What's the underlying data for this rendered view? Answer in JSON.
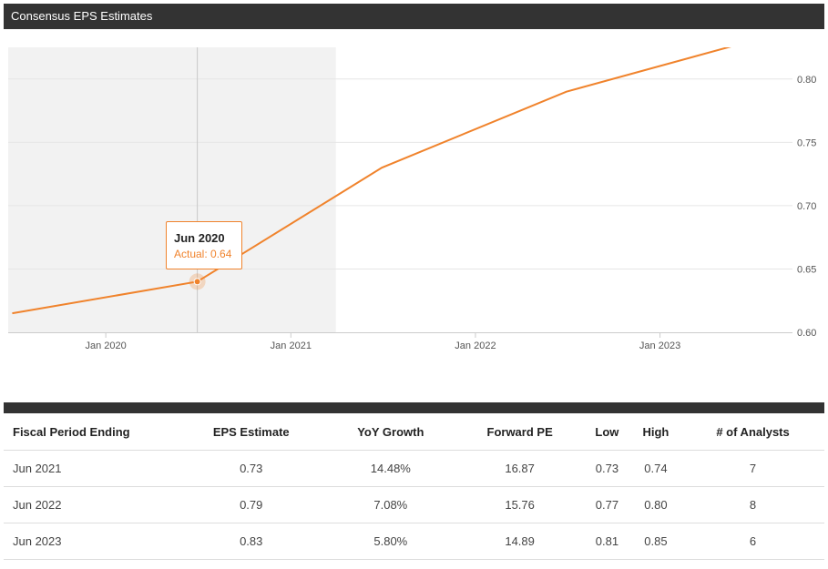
{
  "header": {
    "title": "Consensus EPS Estimates"
  },
  "chart_data": {
    "type": "line",
    "title": "",
    "xlabel": "",
    "ylabel": "",
    "grid": true,
    "y_ticks": [
      "0.60",
      "0.65",
      "0.70",
      "0.75",
      "0.80"
    ],
    "ylim": [
      0.6,
      0.825
    ],
    "x_ticks": [
      "Jan 2020",
      "Jan 2021",
      "Jan 2022",
      "Jan 2023"
    ],
    "xlim": [
      "2019-06-22",
      "2023-09-20"
    ],
    "actual_region_end": "2021-03-31",
    "series": [
      {
        "name": "",
        "color": "#f0832c",
        "x": [
          "2019-06-30",
          "2020-06-30",
          "2021-06-30",
          "2022-06-30",
          "2023-06-30"
        ],
        "y": [
          0.615,
          0.64,
          0.73,
          0.79,
          0.83
        ]
      }
    ],
    "tooltip": {
      "title": "Jun 2020",
      "label": "Actual: 0.64"
    }
  },
  "table": {
    "headers": [
      "Fiscal Period Ending",
      "EPS Estimate",
      "YoY Growth",
      "Forward PE",
      "Low",
      "High",
      "# of Analysts"
    ],
    "rows": [
      [
        "Jun 2021",
        "0.73",
        "14.48%",
        "16.87",
        "0.73",
        "0.74",
        "7"
      ],
      [
        "Jun 2022",
        "0.79",
        "7.08%",
        "15.76",
        "0.77",
        "0.80",
        "8"
      ],
      [
        "Jun 2023",
        "0.83",
        "5.80%",
        "14.89",
        "0.81",
        "0.85",
        "6"
      ]
    ]
  }
}
